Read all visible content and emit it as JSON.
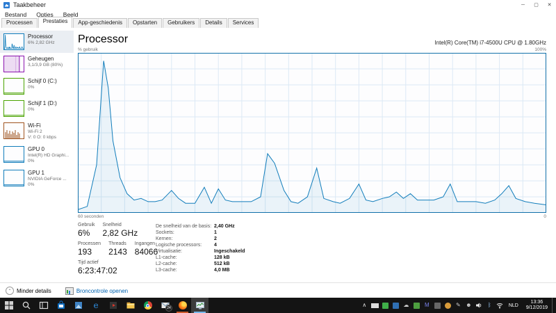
{
  "window": {
    "title": "Taakbeheer",
    "controls": {
      "minimize": "─",
      "maximize": "▢",
      "close": "✕"
    }
  },
  "menu": {
    "items": [
      "Bestand",
      "Opties",
      "Beeld"
    ]
  },
  "tabs": {
    "items": [
      {
        "label": "Processen",
        "active": false
      },
      {
        "label": "Prestaties",
        "active": true
      },
      {
        "label": "App-geschiedenis",
        "active": false
      },
      {
        "label": "Opstarten",
        "active": false
      },
      {
        "label": "Gebruikers",
        "active": false
      },
      {
        "label": "Details",
        "active": false
      },
      {
        "label": "Services",
        "active": false
      }
    ]
  },
  "sidebar": {
    "items": [
      {
        "id": "cpu",
        "title": "Processor",
        "subs": [
          "6% 2,82 GHz"
        ],
        "color": "#117dbb",
        "selected": true,
        "thumb": "cpu"
      },
      {
        "id": "memory",
        "title": "Geheugen",
        "subs": [
          "3,1/3,9 GB (80%)"
        ],
        "color": "#8b12ae",
        "selected": false,
        "thumb": "mem"
      },
      {
        "id": "disk0",
        "title": "Schijf 0 (C:)",
        "subs": [
          "0%"
        ],
        "color": "#4aa300",
        "selected": false,
        "thumb": "flat"
      },
      {
        "id": "disk1",
        "title": "Schijf 1 (D:)",
        "subs": [
          "0%"
        ],
        "color": "#4aa300",
        "selected": false,
        "thumb": "flat"
      },
      {
        "id": "wifi",
        "title": "Wi-Fi",
        "subs": [
          "Wi-Fi 2",
          "V: 0 O: 0 kbps"
        ],
        "color": "#a0541f",
        "selected": false,
        "thumb": "bars"
      },
      {
        "id": "gpu0",
        "title": "GPU 0",
        "subs": [
          "Intel(R) HD Graphi...",
          "0%"
        ],
        "color": "#117dbb",
        "selected": false,
        "thumb": "flat"
      },
      {
        "id": "gpu1",
        "title": "GPU 1",
        "subs": [
          "NVIDIA GeForce ...",
          "0%"
        ],
        "color": "#117dbb",
        "selected": false,
        "thumb": "flat"
      }
    ]
  },
  "main": {
    "title": "Processor",
    "cpu_name": "Intel(R) Core(TM) i7-4500U CPU @ 1.80GHz",
    "chart_labels": {
      "top_left": "% gebruik",
      "top_right": "100%",
      "bottom_left": "60 seconden",
      "bottom_right": "0"
    },
    "stats": {
      "big_groups": [
        [
          {
            "label": "Gebruik",
            "value": "6%"
          },
          {
            "label": "Snelheid",
            "value": "2,82 GHz"
          }
        ],
        [
          {
            "label": "Processen",
            "value": "193"
          },
          {
            "label": "Threads",
            "value": "2143"
          },
          {
            "label": "Ingangen",
            "value": "84066"
          }
        ],
        [
          {
            "label": "Tijd actief",
            "value": "6:23:47:02"
          }
        ]
      ],
      "details": [
        {
          "label": "De snelheid van de basis:",
          "value": "2,40 GHz"
        },
        {
          "label": "Sockets:",
          "value": "1"
        },
        {
          "label": "Kernen:",
          "value": "2"
        },
        {
          "label": "Logische processors:",
          "value": "4"
        },
        {
          "label": "Virtualisatie:",
          "value": "Ingeschakeld"
        },
        {
          "label": "L1-cache:",
          "value": "128 kB"
        },
        {
          "label": "L2-cache:",
          "value": "512 kB"
        },
        {
          "label": "L3-cache:",
          "value": "4,0 MB"
        }
      ]
    }
  },
  "footer": {
    "less_details": "Minder details",
    "open_resource_monitor": "Broncontrole openen"
  },
  "taskbar": {
    "apps": [
      {
        "name": "start",
        "running": false,
        "active": false
      },
      {
        "name": "search",
        "running": false,
        "active": false
      },
      {
        "name": "task-view",
        "running": false,
        "active": false
      },
      {
        "name": "store",
        "running": false,
        "active": false
      },
      {
        "name": "photos",
        "running": false,
        "active": false
      },
      {
        "name": "edge",
        "running": false,
        "active": false
      },
      {
        "name": "movies-tv",
        "running": false,
        "active": false
      },
      {
        "name": "file-explorer",
        "running": false,
        "active": false
      },
      {
        "name": "chrome",
        "running": false,
        "active": false
      },
      {
        "name": "mail",
        "running": false,
        "active": false,
        "badge": "24"
      },
      {
        "name": "firefox",
        "running": true,
        "active": false
      },
      {
        "name": "task-manager",
        "running": true,
        "active": true
      }
    ],
    "tray_icons": [
      "hidden-icons-caret",
      "battery",
      "tray-app-1",
      "tray-app-2",
      "onedrive",
      "tray-app-3",
      "teams",
      "display",
      "weather",
      "pen",
      "people",
      "volume",
      "bluetooth",
      "wifi"
    ],
    "language": "NLD",
    "time": "13:36",
    "date": "9/12/2019"
  },
  "chart_data": {
    "type": "area",
    "title": "Processor % gebruik (60 seconden venster)",
    "xlabel": "60 seconden",
    "ylabel": "% gebruik",
    "xlim": [
      0,
      60
    ],
    "ylim": [
      0,
      100
    ],
    "grid": true,
    "line_color": "#117dbb",
    "fill_color": "rgba(17,125,187,0.08)",
    "grid_color": "#dce9f5",
    "points": [
      [
        0,
        2
      ],
      [
        1.2,
        4
      ],
      [
        2.4,
        30
      ],
      [
        3.3,
        95
      ],
      [
        3.9,
        78
      ],
      [
        4.5,
        45
      ],
      [
        5.4,
        22
      ],
      [
        6.3,
        12
      ],
      [
        7.2,
        8
      ],
      [
        8.1,
        9
      ],
      [
        9,
        7
      ],
      [
        9.9,
        7
      ],
      [
        10.8,
        8
      ],
      [
        12,
        14
      ],
      [
        12.9,
        9
      ],
      [
        13.8,
        6
      ],
      [
        15,
        6
      ],
      [
        16.2,
        16
      ],
      [
        17.1,
        6
      ],
      [
        18,
        15
      ],
      [
        18.9,
        8
      ],
      [
        19.8,
        7
      ],
      [
        21,
        7
      ],
      [
        22.2,
        7
      ],
      [
        23.4,
        10
      ],
      [
        24.3,
        37
      ],
      [
        25.2,
        31
      ],
      [
        26.4,
        14
      ],
      [
        27.3,
        7
      ],
      [
        28.2,
        6
      ],
      [
        29.4,
        10
      ],
      [
        30.6,
        28
      ],
      [
        31.5,
        9
      ],
      [
        32.7,
        7
      ],
      [
        33.6,
        6
      ],
      [
        34.8,
        9
      ],
      [
        36,
        18
      ],
      [
        36.9,
        8
      ],
      [
        37.8,
        7
      ],
      [
        39,
        9
      ],
      [
        39.9,
        10
      ],
      [
        40.8,
        13
      ],
      [
        41.7,
        9
      ],
      [
        42.6,
        12
      ],
      [
        43.5,
        8
      ],
      [
        44.7,
        8
      ],
      [
        45.6,
        8
      ],
      [
        46.8,
        10
      ],
      [
        47.7,
        18
      ],
      [
        48.6,
        7
      ],
      [
        49.8,
        7
      ],
      [
        51,
        7
      ],
      [
        52.2,
        6
      ],
      [
        53.4,
        8
      ],
      [
        54.3,
        12
      ],
      [
        55.2,
        17
      ],
      [
        56.1,
        9
      ],
      [
        57.3,
        7
      ],
      [
        58.5,
        6
      ],
      [
        60,
        5
      ]
    ]
  }
}
